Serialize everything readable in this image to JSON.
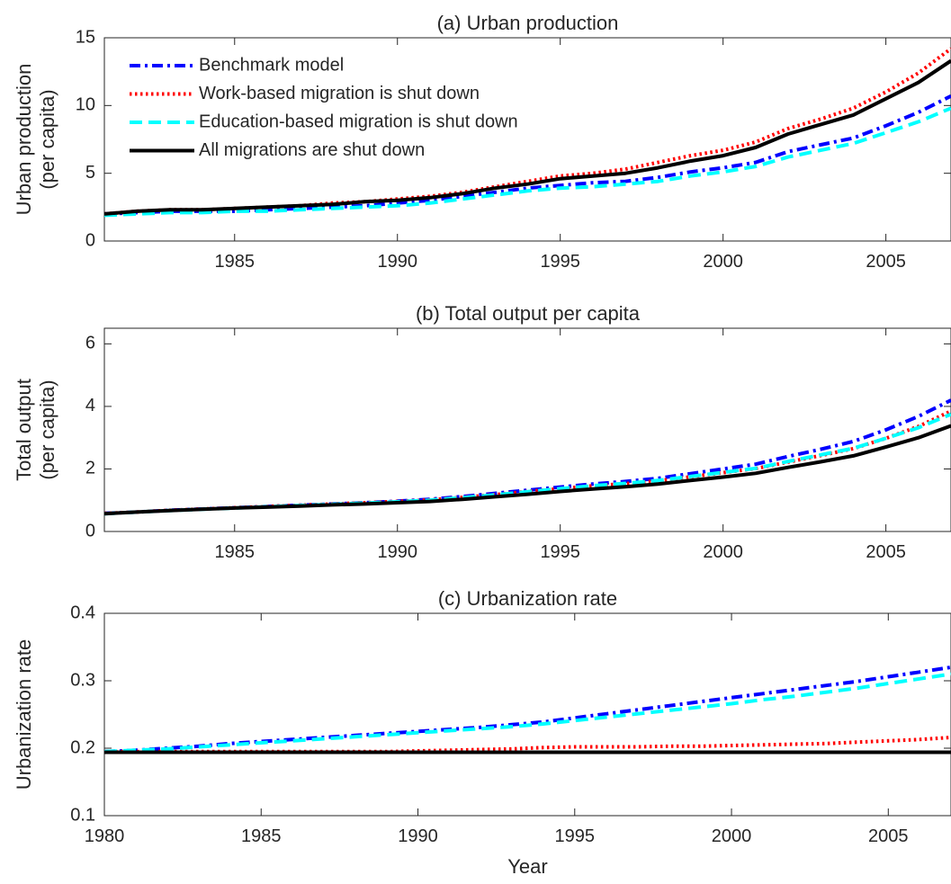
{
  "chart_data": [
    {
      "type": "line",
      "title": "(a) Urban production",
      "xlabel": "",
      "ylabel": [
        "Urban production",
        "(per capita)"
      ],
      "xlim": [
        1981,
        2007
      ],
      "ylim": [
        0,
        15
      ],
      "xticks": [
        1985,
        1990,
        1995,
        2000,
        2005
      ],
      "yticks": [
        0,
        5,
        10,
        15
      ],
      "grid": false,
      "legend": "top-left",
      "x": [
        1981,
        1982,
        1983,
        1984,
        1985,
        1986,
        1987,
        1988,
        1989,
        1990,
        1991,
        1992,
        1993,
        1994,
        1995,
        1996,
        1997,
        1998,
        1999,
        2000,
        2001,
        2002,
        2003,
        2004,
        2005,
        2006,
        2007
      ],
      "series": [
        {
          "name": "Benchmark model",
          "color": "#0000FF",
          "dash": "dashdot",
          "values": [
            2.0,
            2.1,
            2.2,
            2.2,
            2.2,
            2.3,
            2.4,
            2.5,
            2.6,
            2.8,
            3.0,
            3.3,
            3.6,
            3.9,
            4.1,
            4.3,
            4.4,
            4.7,
            5.1,
            5.4,
            5.8,
            6.6,
            7.1,
            7.6,
            8.5,
            9.5,
            10.7
          ]
        },
        {
          "name": "Work-based migration is shut down",
          "color": "#FF0000",
          "dash": "dotted",
          "values": [
            2.0,
            2.2,
            2.3,
            2.3,
            2.4,
            2.5,
            2.6,
            2.8,
            2.9,
            3.1,
            3.3,
            3.6,
            4.0,
            4.4,
            4.8,
            5.0,
            5.3,
            5.8,
            6.3,
            6.7,
            7.3,
            8.3,
            9.0,
            9.8,
            11.0,
            12.4,
            14.2
          ]
        },
        {
          "name": "Education-based migration is shut down",
          "color": "#00FFFF",
          "dash": "dashed",
          "values": [
            1.9,
            2.0,
            2.1,
            2.1,
            2.2,
            2.2,
            2.3,
            2.4,
            2.5,
            2.6,
            2.8,
            3.1,
            3.4,
            3.7,
            3.9,
            4.0,
            4.2,
            4.4,
            4.8,
            5.1,
            5.5,
            6.2,
            6.7,
            7.2,
            8.0,
            8.8,
            9.8
          ]
        },
        {
          "name": "All migrations are shut down",
          "color": "#000000",
          "dash": "solid",
          "values": [
            2.0,
            2.2,
            2.3,
            2.3,
            2.4,
            2.5,
            2.6,
            2.7,
            2.9,
            3.0,
            3.2,
            3.5,
            3.9,
            4.2,
            4.6,
            4.8,
            5.0,
            5.4,
            5.9,
            6.3,
            6.9,
            7.9,
            8.6,
            9.3,
            10.5,
            11.7,
            13.3
          ]
        }
      ]
    },
    {
      "type": "line",
      "title": "(b) Total output per capita",
      "xlabel": "",
      "ylabel": [
        "Total output",
        "(per capita)"
      ],
      "xlim": [
        1981,
        2007
      ],
      "ylim": [
        0,
        6.5
      ],
      "xticks": [
        1985,
        1990,
        1995,
        2000,
        2005
      ],
      "yticks": [
        0,
        2,
        4,
        6
      ],
      "grid": false,
      "x": [
        1981,
        1982,
        1983,
        1984,
        1985,
        1986,
        1987,
        1988,
        1989,
        1990,
        1991,
        1992,
        1993,
        1994,
        1995,
        1996,
        1997,
        1998,
        1999,
        2000,
        2001,
        2002,
        2003,
        2004,
        2005,
        2006,
        2007
      ],
      "series": [
        {
          "name": "Benchmark model",
          "color": "#0000FF",
          "dash": "dashdot",
          "values": [
            0.58,
            0.62,
            0.68,
            0.72,
            0.76,
            0.8,
            0.84,
            0.88,
            0.92,
            0.97,
            1.03,
            1.12,
            1.22,
            1.32,
            1.42,
            1.52,
            1.6,
            1.7,
            1.85,
            2.0,
            2.15,
            2.4,
            2.63,
            2.88,
            3.25,
            3.68,
            4.2
          ]
        },
        {
          "name": "Work-based migration is shut down",
          "color": "#FF0000",
          "dash": "dotted",
          "values": [
            0.58,
            0.62,
            0.68,
            0.72,
            0.76,
            0.8,
            0.84,
            0.88,
            0.92,
            0.96,
            1.01,
            1.09,
            1.18,
            1.28,
            1.37,
            1.46,
            1.53,
            1.62,
            1.75,
            1.88,
            2.01,
            2.22,
            2.43,
            2.65,
            2.98,
            3.36,
            3.85
          ]
        },
        {
          "name": "Education-based migration is shut down",
          "color": "#00FFFF",
          "dash": "dashed",
          "values": [
            0.57,
            0.62,
            0.67,
            0.71,
            0.75,
            0.79,
            0.83,
            0.87,
            0.91,
            0.95,
            1.0,
            1.08,
            1.17,
            1.27,
            1.37,
            1.46,
            1.54,
            1.63,
            1.76,
            1.89,
            2.02,
            2.24,
            2.45,
            2.66,
            2.98,
            3.32,
            3.75
          ]
        },
        {
          "name": "All migrations are shut down",
          "color": "#000000",
          "dash": "solid",
          "values": [
            0.57,
            0.62,
            0.67,
            0.71,
            0.75,
            0.78,
            0.81,
            0.85,
            0.88,
            0.92,
            0.96,
            1.03,
            1.11,
            1.19,
            1.28,
            1.36,
            1.43,
            1.52,
            1.63,
            1.74,
            1.86,
            2.05,
            2.23,
            2.42,
            2.7,
            3.0,
            3.38
          ]
        }
      ]
    },
    {
      "type": "line",
      "title": "(c) Urbanization rate",
      "xlabel": "Year",
      "ylabel": [
        "Urbanization rate"
      ],
      "xlim": [
        1980,
        2007
      ],
      "ylim": [
        0.1,
        0.4
      ],
      "xticks": [
        1980,
        1985,
        1990,
        1995,
        2000,
        2005
      ],
      "yticks": [
        0.1,
        0.2,
        0.3,
        0.4
      ],
      "grid": false,
      "x": [
        1980,
        1981,
        1982,
        1983,
        1984,
        1985,
        1986,
        1987,
        1988,
        1989,
        1990,
        1991,
        1992,
        1993,
        1994,
        1995,
        1996,
        1997,
        1998,
        1999,
        2000,
        2001,
        2002,
        2003,
        2004,
        2005,
        2006,
        2007
      ],
      "series": [
        {
          "name": "Benchmark model",
          "color": "#0000FF",
          "dash": "dashdot",
          "values": [
            0.195,
            0.197,
            0.2,
            0.203,
            0.207,
            0.21,
            0.213,
            0.216,
            0.219,
            0.222,
            0.225,
            0.228,
            0.231,
            0.235,
            0.239,
            0.245,
            0.251,
            0.257,
            0.263,
            0.269,
            0.275,
            0.281,
            0.287,
            0.293,
            0.299,
            0.306,
            0.313,
            0.32
          ]
        },
        {
          "name": "Work-based migration is shut down",
          "color": "#FF0000",
          "dash": "dotted",
          "values": [
            0.195,
            0.195,
            0.195,
            0.195,
            0.195,
            0.195,
            0.195,
            0.195,
            0.195,
            0.195,
            0.196,
            0.197,
            0.198,
            0.199,
            0.201,
            0.202,
            0.202,
            0.202,
            0.203,
            0.203,
            0.204,
            0.205,
            0.206,
            0.207,
            0.209,
            0.211,
            0.213,
            0.216
          ]
        },
        {
          "name": "Education-based migration is shut down",
          "color": "#00FFFF",
          "dash": "dashed",
          "values": [
            0.195,
            0.197,
            0.199,
            0.202,
            0.205,
            0.208,
            0.211,
            0.214,
            0.217,
            0.22,
            0.223,
            0.226,
            0.229,
            0.232,
            0.236,
            0.241,
            0.246,
            0.251,
            0.256,
            0.261,
            0.266,
            0.272,
            0.277,
            0.283,
            0.289,
            0.296,
            0.303,
            0.31
          ]
        },
        {
          "name": "All migrations are shut down",
          "color": "#000000",
          "dash": "solid",
          "values": [
            0.194,
            0.194,
            0.194,
            0.194,
            0.194,
            0.194,
            0.194,
            0.194,
            0.194,
            0.194,
            0.194,
            0.194,
            0.194,
            0.194,
            0.194,
            0.194,
            0.194,
            0.194,
            0.194,
            0.194,
            0.194,
            0.194,
            0.194,
            0.194,
            0.194,
            0.194,
            0.194,
            0.194
          ]
        }
      ]
    }
  ]
}
